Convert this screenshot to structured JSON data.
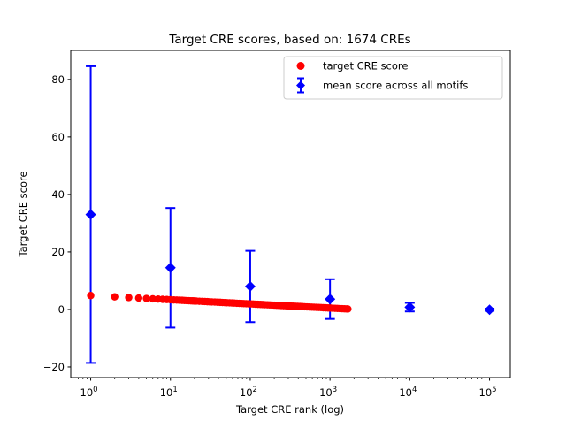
{
  "figure": {
    "background": "#ffffff",
    "axes_facecolor": "#ffffff",
    "spine_color": "#000000"
  },
  "chart_data": {
    "type": "scatter",
    "title": "Target CRE scores, based on: 1674 CREs",
    "xlabel": "Target CRE rank (log)",
    "ylabel": "Target CRE score",
    "x_scale": "log",
    "xlim_log10": [
      -0.25,
      5.26
    ],
    "ylim": [
      -23.7,
      90.1
    ],
    "grid": false,
    "y_ticks": [
      {
        "value": -20,
        "label": "−20"
      },
      {
        "value": 0,
        "label": "0"
      },
      {
        "value": 20,
        "label": "20"
      },
      {
        "value": 40,
        "label": "40"
      },
      {
        "value": 60,
        "label": "60"
      },
      {
        "value": 80,
        "label": "80"
      }
    ],
    "x_ticks": [
      {
        "log10": 0,
        "base": "10",
        "exp": "0"
      },
      {
        "log10": 1,
        "base": "10",
        "exp": "1"
      },
      {
        "log10": 2,
        "base": "10",
        "exp": "2"
      },
      {
        "log10": 3,
        "base": "10",
        "exp": "3"
      },
      {
        "log10": 4,
        "base": "10",
        "exp": "4"
      },
      {
        "log10": 5,
        "base": "10",
        "exp": "5"
      }
    ],
    "legend": {
      "position": "upper right",
      "entries": [
        {
          "label": "target CRE score",
          "marker": "circle",
          "color": "#ff0000"
        },
        {
          "label": "mean score across all motifs",
          "marker": "diamond-errorbar",
          "color": "#0000ff"
        }
      ]
    },
    "series": [
      {
        "name": "mean score across all motifs",
        "type": "errorbar",
        "marker": "diamond",
        "color": "#0000ff",
        "x": [
          1,
          10,
          100,
          1000,
          10000,
          100000
        ],
        "y": [
          33.0,
          14.5,
          8.0,
          3.6,
          0.8,
          -0.1
        ],
        "yerr": [
          51.6,
          20.8,
          12.4,
          6.9,
          1.5,
          0.4
        ]
      },
      {
        "name": "target CRE score",
        "type": "scatter",
        "marker": "circle",
        "color": "#ff0000",
        "x": [
          1,
          2,
          3,
          4,
          5,
          6,
          7,
          8,
          9,
          10,
          11,
          12,
          13,
          14,
          15,
          16,
          17,
          18,
          19,
          20,
          21,
          23,
          25,
          27,
          29,
          31,
          33,
          36,
          39,
          42,
          45,
          48,
          51,
          55,
          59,
          63,
          68,
          73,
          78,
          83,
          89,
          95,
          102,
          109,
          117,
          125,
          134,
          143,
          153,
          164,
          175,
          187,
          200,
          214,
          229,
          245,
          262,
          280,
          300,
          321,
          343,
          367,
          393,
          420,
          449,
          481,
          514,
          550,
          589,
          630,
          674,
          721,
          771,
          825,
          883,
          945,
          1011,
          1082,
          1158,
          1239,
          1325,
          1418,
          1517,
          1623,
          1674
        ],
        "y": [
          4.83,
          4.39,
          4.14,
          3.96,
          3.82,
          3.7,
          3.61,
          3.52,
          3.45,
          3.38,
          3.32,
          3.27,
          3.22,
          3.17,
          3.13,
          3.09,
          3.05,
          3.01,
          2.98,
          2.94,
          2.91,
          2.86,
          2.8,
          2.76,
          2.71,
          2.67,
          2.63,
          2.57,
          2.52,
          2.48,
          2.43,
          2.39,
          2.36,
          2.31,
          2.26,
          2.22,
          2.17,
          2.13,
          2.09,
          2.05,
          2.01,
          1.96,
          1.92,
          1.88,
          1.83,
          1.79,
          1.75,
          1.71,
          1.66,
          1.62,
          1.58,
          1.54,
          1.5,
          1.45,
          1.41,
          1.37,
          1.33,
          1.28,
          1.24,
          1.2,
          1.16,
          1.11,
          1.07,
          1.03,
          0.99,
          0.94,
          0.9,
          0.86,
          0.82,
          0.77,
          0.73,
          0.69,
          0.65,
          0.6,
          0.56,
          0.52,
          0.48,
          0.43,
          0.39,
          0.35,
          0.31,
          0.26,
          0.22,
          0.18,
          0.16
        ]
      }
    ]
  }
}
